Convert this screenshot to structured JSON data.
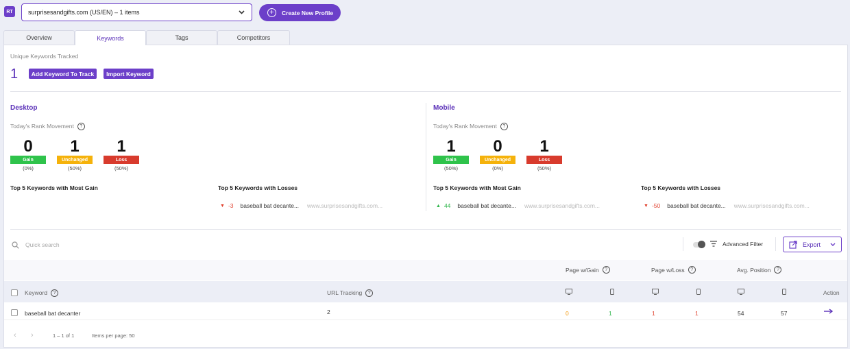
{
  "header": {
    "logo": "RT",
    "site_selector": "surprisesandgifts.com (US/EN) – 1 items",
    "create_profile": "Create New Profile"
  },
  "tabs": [
    {
      "label": "Overview"
    },
    {
      "label": "Keywords"
    },
    {
      "label": "Tags"
    },
    {
      "label": "Competitors"
    }
  ],
  "summary": {
    "unique_label": "Unique Keywords Tracked",
    "unique_count": "1",
    "add_button": "Add Keyword To Track",
    "import_button": "Import Keyword"
  },
  "desktop": {
    "title": "Desktop",
    "movement_label": "Today's Rank Movement",
    "gain": {
      "value": "0",
      "label": "Gain",
      "pct": "(0%)"
    },
    "unchanged": {
      "value": "1",
      "label": "Unchanged",
      "pct": "(50%)"
    },
    "loss": {
      "value": "1",
      "label": "Loss",
      "pct": "(50%)"
    },
    "top_gain_title": "Top 5 Keywords with Most Gain",
    "top_loss_title": "Top 5 Keywords with Losses",
    "loss_items": [
      {
        "change": "-3",
        "keyword": "baseball bat decante...",
        "url": "www.surprisesandgifts.com..."
      }
    ]
  },
  "mobile": {
    "title": "Mobile",
    "movement_label": "Today's Rank Movement",
    "gain": {
      "value": "1",
      "label": "Gain",
      "pct": "(50%)"
    },
    "unchanged": {
      "value": "0",
      "label": "Unchanged",
      "pct": "(0%)"
    },
    "loss": {
      "value": "1",
      "label": "Loss",
      "pct": "(50%)"
    },
    "top_gain_title": "Top 5 Keywords with Most Gain",
    "top_loss_title": "Top 5 Keywords with Losses",
    "gain_items": [
      {
        "change": "44",
        "keyword": "baseball bat decante...",
        "url": "www.surprisesandgifts.com..."
      }
    ],
    "loss_items": [
      {
        "change": "-50",
        "keyword": "baseball bat decante...",
        "url": "www.surprisesandgifts.com..."
      }
    ]
  },
  "toolbar": {
    "search_placeholder": "Quick search",
    "advanced_filter": "Advanced Filter",
    "export": "Export"
  },
  "table": {
    "group_headers": {
      "page_gain": "Page w/Gain",
      "page_loss": "Page w/Loss",
      "avg_position": "Avg. Position"
    },
    "col_keyword": "Keyword",
    "col_url": "URL Tracking",
    "col_action": "Action",
    "rows": [
      {
        "keyword": "baseball bat decanter",
        "url_tracking": "2",
        "gain_desktop": "0",
        "gain_mobile": "1",
        "loss_desktop": "1",
        "loss_mobile": "1",
        "avg_desktop": "54",
        "avg_mobile": "57"
      }
    ]
  },
  "pagination": {
    "range": "1 – 1 of 1",
    "per_page": "Items per page: 50"
  },
  "colors": {
    "accent": "#6c3fc9",
    "gain": "#2fc34b",
    "unchanged": "#f5b20b",
    "loss": "#d83b2d",
    "gain_text": "#f39c12",
    "positive_text": "#2fb54a",
    "negative_text": "#e0422f"
  }
}
